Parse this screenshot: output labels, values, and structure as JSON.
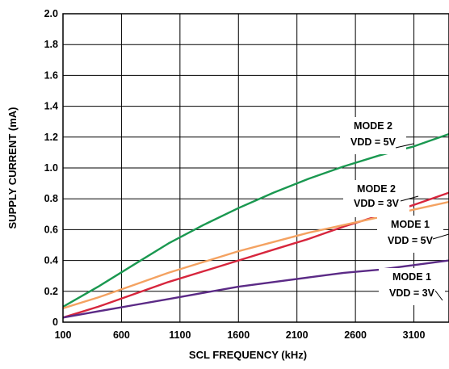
{
  "chart_data": {
    "type": "line",
    "title": "",
    "xlabel": "SCL FREQUENCY (kHz)",
    "ylabel": "SUPPLY CURRENT (mA)",
    "xlim": [
      100,
      3400
    ],
    "ylim": [
      0,
      2.0
    ],
    "grid": true,
    "x_ticks": [
      "100",
      "600",
      "1100",
      "1600",
      "2100",
      "2600",
      "3100"
    ],
    "y_ticks": [
      "0",
      "0.2",
      "0.4",
      "0.6",
      "0.8",
      "1.0",
      "1.2",
      "1.4",
      "1.6",
      "1.8",
      "2.0"
    ],
    "series": [
      {
        "name": "MODE 2 VDD = 5V",
        "label_lines": [
          "MODE 2",
          "VDD = 5V"
        ],
        "color": "#1a9850",
        "x": [
          100,
          400,
          700,
          1000,
          1300,
          1600,
          1900,
          2200,
          2500,
          2800,
          3100,
          3400
        ],
        "y": [
          0.1,
          0.23,
          0.37,
          0.51,
          0.63,
          0.74,
          0.84,
          0.93,
          1.01,
          1.08,
          1.14,
          1.22
        ]
      },
      {
        "name": "MODE 2 VDD = 3V",
        "label_lines": [
          "MODE 2",
          "VDD = 3V"
        ],
        "color": "#d7263d",
        "x": [
          100,
          400,
          700,
          1000,
          1300,
          1600,
          1900,
          2200,
          2500,
          2800,
          3100,
          3400
        ],
        "y": [
          0.03,
          0.1,
          0.18,
          0.26,
          0.33,
          0.4,
          0.47,
          0.54,
          0.62,
          0.69,
          0.76,
          0.84
        ]
      },
      {
        "name": "MODE 1 VDD = 5V",
        "label_lines": [
          "MODE 1",
          "VDD = 5V"
        ],
        "color": "#f4a261",
        "x": [
          100,
          400,
          700,
          1000,
          1300,
          1600,
          1900,
          2200,
          2500,
          2800,
          3100,
          3400
        ],
        "y": [
          0.09,
          0.16,
          0.24,
          0.32,
          0.39,
          0.46,
          0.52,
          0.58,
          0.63,
          0.68,
          0.73,
          0.78
        ]
      },
      {
        "name": "MODE 1 VDD = 3V",
        "label_lines": [
          "MODE 1",
          "VDD = 3V"
        ],
        "color": "#5b2a86",
        "x": [
          100,
          400,
          700,
          1000,
          1300,
          1600,
          1900,
          2200,
          2500,
          2800,
          3100,
          3400
        ],
        "y": [
          0.03,
          0.07,
          0.11,
          0.15,
          0.19,
          0.23,
          0.26,
          0.29,
          0.32,
          0.34,
          0.37,
          0.4
        ]
      }
    ]
  }
}
